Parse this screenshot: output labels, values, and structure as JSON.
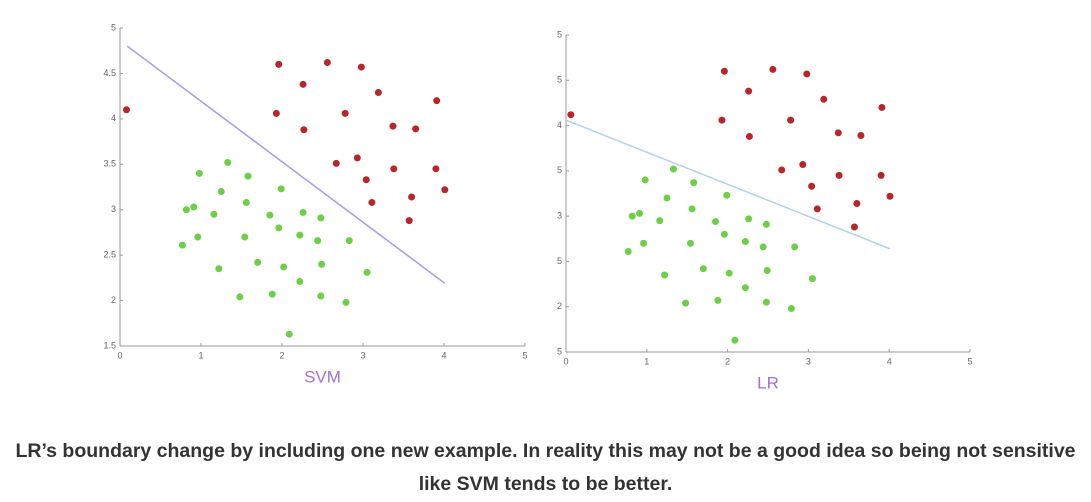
{
  "chart_data": [
    {
      "type": "scatter",
      "xlabel": "SVM",
      "xlim": [
        0,
        5
      ],
      "ylim": [
        1.5,
        5
      ],
      "xticks": [
        0,
        1,
        2,
        3,
        4,
        5
      ],
      "yticks": [
        1.5,
        2,
        2.5,
        3,
        3.5,
        4,
        4.5,
        5
      ],
      "series": [
        {
          "color": "#b8262b",
          "x": [
            0.08,
            1.96,
            2.56,
            2.98,
            2.26,
            3.19,
            1.93,
            2.78,
            3.91,
            2.27,
            3.37,
            3.65,
            2.67,
            2.93,
            3.04,
            3.38,
            3.9,
            4.01,
            3.11,
            3.6,
            3.57
          ],
          "values": [
            4.1,
            4.6,
            4.62,
            4.57,
            4.38,
            4.29,
            4.06,
            4.06,
            4.2,
            3.88,
            3.92,
            3.89,
            3.51,
            3.57,
            3.33,
            3.45,
            3.45,
            3.22,
            3.08,
            3.14,
            2.88
          ]
        },
        {
          "color": "#6ccf45",
          "x": [
            0.98,
            1.33,
            1.58,
            1.25,
            1.99,
            0.82,
            0.91,
            1.56,
            1.16,
            1.85,
            2.26,
            2.48,
            1.96,
            0.96,
            1.54,
            2.22,
            2.44,
            2.83,
            0.77,
            1.7,
            2.02,
            2.49,
            1.22,
            3.05,
            2.22,
            1.48,
            1.88,
            2.48,
            2.79,
            2.09
          ],
          "values": [
            3.4,
            3.52,
            3.37,
            3.2,
            3.23,
            3.0,
            3.03,
            3.08,
            2.95,
            2.94,
            2.97,
            2.91,
            2.8,
            2.7,
            2.7,
            2.72,
            2.66,
            2.66,
            2.61,
            2.42,
            2.37,
            2.4,
            2.35,
            2.31,
            2.21,
            2.04,
            2.07,
            2.05,
            1.98,
            1.63
          ]
        }
      ],
      "boundary": {
        "color": "#a99be0",
        "x": [
          0.09,
          4.01
        ],
        "values": [
          4.8,
          2.19
        ]
      }
    },
    {
      "type": "scatter",
      "xlabel": "LR",
      "xlim": [
        0,
        5
      ],
      "ylim": [
        1.5,
        5
      ],
      "xticks": [
        0,
        1,
        2,
        3,
        4,
        5
      ],
      "yticks": [
        {
          "value": 1.5,
          "label": "5"
        },
        2,
        {
          "value": 2.5,
          "label": "5"
        },
        3,
        {
          "value": 3.5,
          "label": "5"
        },
        4,
        {
          "value": 4.5,
          "label": "5"
        },
        5
      ],
      "series": [
        {
          "color": "#b8262b",
          "x": [
            0.06,
            1.96,
            2.56,
            2.98,
            2.26,
            3.19,
            1.93,
            2.78,
            3.91,
            2.27,
            3.37,
            3.65,
            2.67,
            2.93,
            3.04,
            3.38,
            3.9,
            4.01,
            3.11,
            3.6,
            3.57
          ],
          "values": [
            4.12,
            4.6,
            4.62,
            4.57,
            4.38,
            4.29,
            4.06,
            4.06,
            4.2,
            3.88,
            3.92,
            3.89,
            3.51,
            3.57,
            3.33,
            3.45,
            3.45,
            3.22,
            3.08,
            3.14,
            2.88
          ]
        },
        {
          "color": "#6ccf45",
          "x": [
            0.98,
            1.33,
            1.58,
            1.25,
            1.99,
            0.82,
            0.91,
            1.56,
            1.16,
            1.85,
            2.26,
            2.48,
            1.96,
            0.96,
            1.54,
            2.22,
            2.44,
            2.83,
            0.77,
            1.7,
            2.02,
            2.49,
            1.22,
            3.05,
            2.22,
            1.48,
            1.88,
            2.48,
            2.79,
            2.09
          ],
          "values": [
            3.4,
            3.52,
            3.37,
            3.2,
            3.23,
            3.0,
            3.03,
            3.08,
            2.95,
            2.94,
            2.97,
            2.91,
            2.8,
            2.7,
            2.7,
            2.72,
            2.66,
            2.66,
            2.61,
            2.42,
            2.37,
            2.4,
            2.35,
            2.31,
            2.21,
            2.04,
            2.07,
            2.05,
            1.98,
            1.63
          ]
        }
      ],
      "boundary": {
        "color": "#b0d3e6",
        "x": [
          0,
          4.01
        ],
        "values": [
          4.06,
          2.64
        ]
      }
    }
  ],
  "caption": "LR’s boundary change by including one new example. In reality this may not be a good idea so being not sensitive like SVM tends to be better."
}
